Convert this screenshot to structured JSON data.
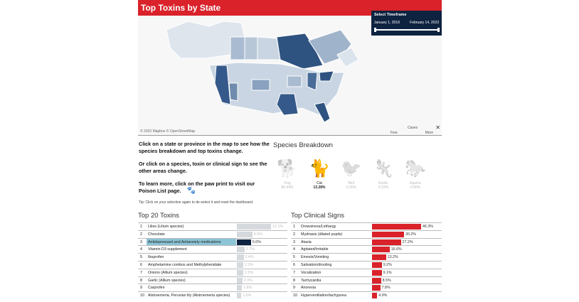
{
  "header": {
    "title": "Top Toxins by State"
  },
  "timeframe": {
    "label": "Select Timeframe",
    "start": "January 1, 2018",
    "end": "February 14, 2023"
  },
  "map": {
    "credit": "© 2023 Mapbox  © OpenStreetMap",
    "legend": {
      "title": "Cases",
      "low": "Few",
      "high": "More",
      "close": "✕",
      "colors": [
        "#e6ebf1",
        "#2c4f7a"
      ]
    }
  },
  "info": {
    "p1": "Click on a state or province in the map to see how the species breakdown and top toxins change.",
    "p2": "Or click on a species, toxin or clinical sign to see the other areas change.",
    "p3": "To learn more, click on the paw print to visit our Poison List page.",
    "paw_icon": "paw-print-icon",
    "tip": "Tip: Click on your selection again to de-select it and reset the dashboard."
  },
  "species": {
    "title": "Species Breakdown",
    "items": [
      {
        "name": "Dog",
        "value": "86.44%",
        "icon": "dog-icon",
        "selected": false
      },
      {
        "name": "Cat",
        "value": "13.28%",
        "icon": "cat-icon",
        "selected": true
      },
      {
        "name": "Bird",
        "value": "0.05%",
        "icon": "bird-icon",
        "selected": false
      },
      {
        "name": "Exotic",
        "value": "0.23%",
        "icon": "lizard-icon",
        "selected": false
      },
      {
        "name": "Equine",
        "value": "0.00%",
        "icon": "horse-icon",
        "selected": false
      }
    ]
  },
  "toxins": {
    "title": "Top 20 Toxins",
    "selected_rank": 3,
    "rows": [
      {
        "rank": "1",
        "name": "Lilies (Lilium species)",
        "pct": 12.1,
        "label": "12.1%"
      },
      {
        "rank": "2",
        "name": "Chocolate",
        "pct": 5.5,
        "label": "5.5%"
      },
      {
        "rank": "3",
        "name": "Antidepressant and Antianxiety medications",
        "pct": 5.0,
        "label": "5.0%"
      },
      {
        "rank": "4",
        "name": "Vitamin D3 supplement",
        "pct": 2.7,
        "label": "2.7%"
      },
      {
        "rank": "5",
        "name": "Ibuprofen",
        "pct": 2.4,
        "label": "2.4%"
      },
      {
        "rank": "6",
        "name": "Amphetamine combos and Methylphenidate",
        "pct": 2.3,
        "label": "2.3%"
      },
      {
        "rank": "7",
        "name": "Onions (Allium species)",
        "pct": 2.3,
        "label": "2.3%"
      },
      {
        "rank": "8",
        "name": "Garlic (Allium species)",
        "pct": 2.0,
        "label": "2.0%"
      },
      {
        "rank": "9",
        "name": "Carprofen",
        "pct": 1.8,
        "label": "1.8%"
      },
      {
        "rank": "10",
        "name": "Alstroemeria, Peruvian lily (Alstroemeria species)",
        "pct": 1.6,
        "label": "1.6%"
      }
    ]
  },
  "signs": {
    "title": "Top Clinical Signs",
    "color": "#d9222a",
    "rows": [
      {
        "rank": "1",
        "name": "Drowsiness/Lethargy",
        "pct": 46.3,
        "label": "46.3%"
      },
      {
        "rank": "2",
        "name": "Mydriasis (dilated pupils)",
        "pct": 30.2,
        "label": "30.2%"
      },
      {
        "rank": "3",
        "name": "Ataxia",
        "pct": 27.2,
        "label": "27.2%"
      },
      {
        "rank": "4",
        "name": "Agitated/Irritable",
        "pct": 16.6,
        "label": "16.6%"
      },
      {
        "rank": "5",
        "name": "Emesis/Vomiting",
        "pct": 13.2,
        "label": "13.2%"
      },
      {
        "rank": "6",
        "name": "Salivation/drooling",
        "pct": 9.2,
        "label": "9.2%"
      },
      {
        "rank": "7",
        "name": "Vocalization",
        "pct": 9.1,
        "label": "9.1%"
      },
      {
        "rank": "8",
        "name": "Tachycardia",
        "pct": 8.5,
        "label": "8.5%"
      },
      {
        "rank": "9",
        "name": "Anorexia",
        "pct": 7.8,
        "label": "7.8%"
      },
      {
        "rank": "10",
        "name": "Hyperventilation/tachypnea",
        "pct": 4.9,
        "label": "4.9%"
      }
    ]
  }
}
